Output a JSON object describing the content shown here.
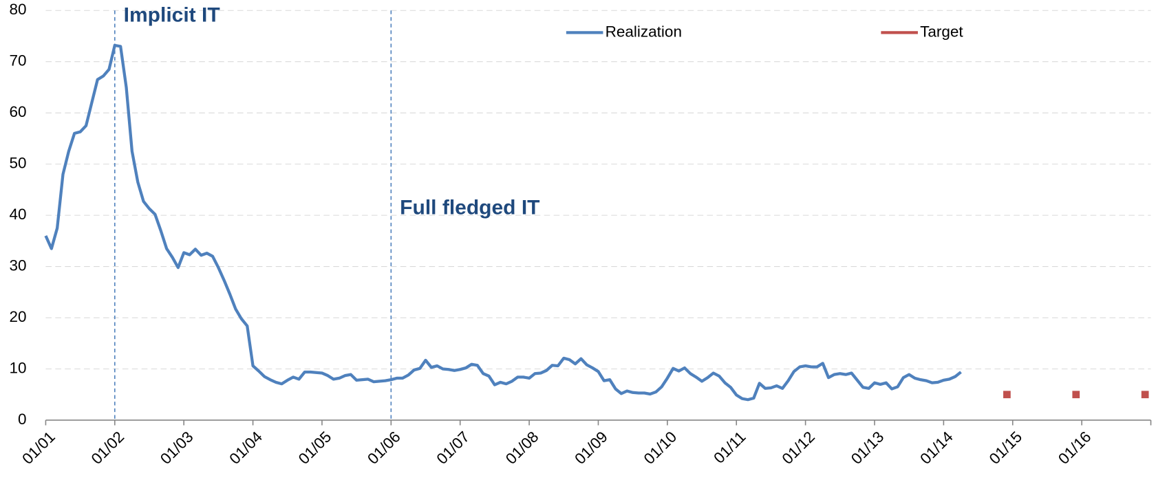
{
  "chart_data": {
    "type": "line",
    "annotations": [
      {
        "x": "01/02",
        "text": "Implicit IT"
      },
      {
        "x": "01/06",
        "text": "Full fledged IT"
      }
    ],
    "series": [
      {
        "name": "Realization",
        "color": "#4f81bd",
        "marker": "line",
        "x": [
          "01/01",
          "02/01",
          "03/01",
          "04/01",
          "05/01",
          "06/01",
          "07/01",
          "08/01",
          "09/01",
          "10/01",
          "11/01",
          "12/01",
          "01/02",
          "02/02",
          "03/02",
          "04/02",
          "05/02",
          "06/02",
          "07/02",
          "08/02",
          "09/02",
          "10/02",
          "11/02",
          "12/02",
          "01/03",
          "02/03",
          "03/03",
          "04/03",
          "05/03",
          "06/03",
          "07/03",
          "08/03",
          "09/03",
          "10/03",
          "11/03",
          "12/03",
          "01/04",
          "02/04",
          "03/04",
          "04/04",
          "05/04",
          "06/04",
          "07/04",
          "08/04",
          "09/04",
          "10/04",
          "11/04",
          "12/04",
          "01/05",
          "02/05",
          "03/05",
          "04/05",
          "05/05",
          "06/05",
          "07/05",
          "08/05",
          "09/05",
          "10/05",
          "11/05",
          "12/05",
          "01/06",
          "02/06",
          "03/06",
          "04/06",
          "05/06",
          "06/06",
          "07/06",
          "08/06",
          "09/06",
          "10/06",
          "11/06",
          "12/06",
          "01/07",
          "02/07",
          "03/07",
          "04/07",
          "05/07",
          "06/07",
          "07/07",
          "08/07",
          "09/07",
          "10/07",
          "11/07",
          "12/07",
          "01/08",
          "02/08",
          "03/08",
          "04/08",
          "05/08",
          "06/08",
          "07/08",
          "08/08",
          "09/08",
          "10/08",
          "11/08",
          "12/08",
          "01/09",
          "02/09",
          "03/09",
          "04/09",
          "05/09",
          "06/09",
          "07/09",
          "08/09",
          "09/09",
          "10/09",
          "11/09",
          "12/09",
          "01/10",
          "02/10",
          "03/10",
          "04/10",
          "05/10",
          "06/10",
          "07/10",
          "08/10",
          "09/10",
          "10/10",
          "11/10",
          "12/10",
          "01/11",
          "02/11",
          "03/11",
          "04/11",
          "05/11",
          "06/11",
          "07/11",
          "08/11",
          "09/11",
          "10/11",
          "11/11",
          "12/11",
          "01/12",
          "02/12",
          "03/12",
          "04/12",
          "05/12",
          "06/12",
          "07/12",
          "08/12",
          "09/12",
          "10/12",
          "11/12",
          "12/12",
          "01/13",
          "02/13",
          "03/13",
          "04/13",
          "05/13",
          "06/13",
          "07/13",
          "08/13",
          "09/13",
          "10/13",
          "11/13",
          "12/13",
          "01/14",
          "02/14",
          "03/14",
          "04/14"
        ],
        "values": [
          36,
          33.5,
          37.5,
          48,
          52.5,
          56,
          56.3,
          57.5,
          62,
          66.5,
          67.2,
          68.5,
          73.2,
          73,
          65,
          52.5,
          46.5,
          42.7,
          41.3,
          40.2,
          37,
          33.5,
          31.8,
          29.8,
          32.7,
          32.3,
          33.4,
          32.2,
          32.6,
          32,
          29.8,
          27.3,
          24.6,
          21.7,
          19.8,
          18.4,
          10.6,
          9.6,
          8.5,
          7.9,
          7.4,
          7.1,
          7.8,
          8.4,
          8,
          9.4,
          9.4,
          9.3,
          9.2,
          8.7,
          8,
          8.2,
          8.7,
          8.9,
          7.8,
          7.9,
          8,
          7.5,
          7.6,
          7.7,
          7.9,
          8.2,
          8.2,
          8.8,
          9.8,
          10.1,
          11.7,
          10.3,
          10.6,
          10,
          9.9,
          9.7,
          9.9,
          10.2,
          10.9,
          10.7,
          9.1,
          8.6,
          6.9,
          7.4,
          7.1,
          7.6,
          8.4,
          8.4,
          8.2,
          9.1,
          9.2,
          9.7,
          10.7,
          10.6,
          12.1,
          11.8,
          11,
          12,
          10.8,
          10.2,
          9.5,
          7.7,
          7.9,
          6.1,
          5.2,
          5.7,
          5.4,
          5.3,
          5.3,
          5.1,
          5.5,
          6.5,
          8.2,
          10.1,
          9.6,
          10.2,
          9.1,
          8.4,
          7.6,
          8.3,
          9.2,
          8.6,
          7.3,
          6.4,
          4.9,
          4.2,
          4,
          4.3,
          7.2,
          6.2,
          6.3,
          6.7,
          6.2,
          7.7,
          9.5,
          10.4,
          10.6,
          10.4,
          10.4,
          11.1,
          8.3,
          8.9,
          9.1,
          8.9,
          9.2,
          7.8,
          6.4,
          6.2,
          7.3,
          7,
          7.3,
          6.1,
          6.5,
          8.3,
          8.9,
          8.2,
          7.9,
          7.7,
          7.3,
          7.4,
          7.8,
          8,
          8.5,
          9.4
        ]
      },
      {
        "name": "Target",
        "color": "#c0504d",
        "marker": "square",
        "x": [
          "12/14",
          "12/15",
          "12/16"
        ],
        "values": [
          5,
          5,
          5
        ]
      }
    ],
    "xlim": [
      "01/01",
      "01/17"
    ],
    "xticks": [
      "01/01",
      "01/02",
      "01/03",
      "01/04",
      "01/05",
      "01/06",
      "01/07",
      "01/08",
      "01/09",
      "01/10",
      "01/11",
      "01/12",
      "01/13",
      "01/14",
      "01/15",
      "01/16"
    ],
    "ylim": [
      0,
      80
    ],
    "yticks": [
      0,
      10,
      20,
      30,
      40,
      50,
      60,
      70,
      80
    ],
    "grid": true,
    "legend": "top"
  }
}
